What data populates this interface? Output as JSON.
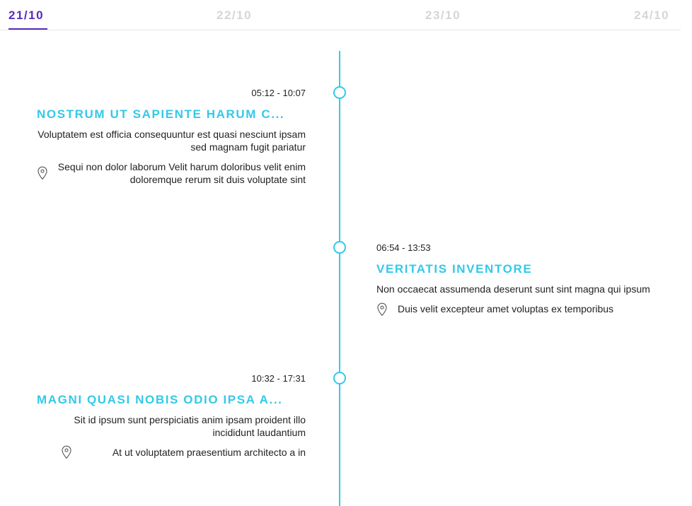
{
  "tabs": [
    {
      "label": "21/10",
      "active": true
    },
    {
      "label": "22/10",
      "active": false
    },
    {
      "label": "23/10",
      "active": false
    },
    {
      "label": "24/10",
      "active": false
    }
  ],
  "colors": {
    "accent": "#5b2bbf",
    "timeline": "#33c9e9",
    "inactive_tab": "#d6d6d6"
  },
  "events": [
    {
      "time": "05:12 - 10:07",
      "title": "NOSTRUM UT SAPIENTE HARUM C...",
      "description": "Voluptatem est officia consequuntur est quasi nesciunt ipsam sed magnam fugit pariatur",
      "location": "Sequi non dolor laborum Velit harum doloribus velit enim doloremque rerum sit duis voluptate sint",
      "location_icon": "map-pin-icon",
      "side": "left"
    },
    {
      "time": "06:54 - 13:53",
      "title": "VERITATIS INVENTORE",
      "description": "Non occaecat assumenda deserunt sunt sint magna qui ipsum",
      "location": "Duis velit excepteur amet voluptas ex temporibus",
      "location_icon": "map-pin-icon",
      "side": "right"
    },
    {
      "time": "10:32 - 17:31",
      "title": "MAGNI QUASI NOBIS ODIO IPSA A...",
      "description": "Sit id ipsum sunt perspiciatis anim ipsam proident illo incididunt laudantium",
      "location": "At ut voluptatem praesentium architecto a in",
      "location_icon": "map-pin-icon",
      "side": "left"
    }
  ]
}
